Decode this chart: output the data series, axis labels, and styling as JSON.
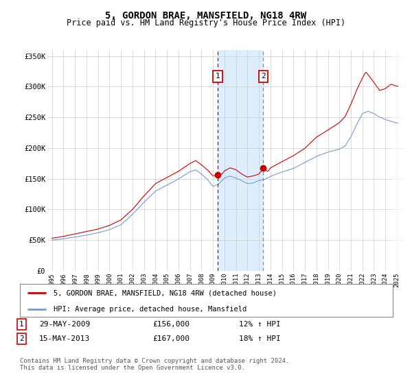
{
  "title": "5, GORDON BRAE, MANSFIELD, NG18 4RW",
  "subtitle": "Price paid vs. HM Land Registry's House Price Index (HPI)",
  "line1_color": "#cc0000",
  "line2_color": "#7799cc",
  "background_color": "#ffffff",
  "grid_color": "#cccccc",
  "vline1_x": 2009.41,
  "vline2_x": 2013.37,
  "shade_color": "#ddeeff",
  "legend1_label": "5, GORDON BRAE, MANSFIELD, NG18 4RW (detached house)",
  "legend2_label": "HPI: Average price, detached house, Mansfield",
  "footer": "Contains HM Land Registry data © Crown copyright and database right 2024.\nThis data is licensed under the Open Government Licence v3.0.",
  "ylim": [
    0,
    360000
  ],
  "yticks": [
    0,
    50000,
    100000,
    150000,
    200000,
    250000,
    300000,
    350000
  ],
  "ytick_labels": [
    "£0",
    "£50K",
    "£100K",
    "£150K",
    "£200K",
    "£250K",
    "£300K",
    "£350K"
  ],
  "xlim_left": 1994.6,
  "xlim_right": 2025.6,
  "sale1_x": 2009.41,
  "sale1_y": 156000,
  "sale2_x": 2013.37,
  "sale2_y": 167000
}
